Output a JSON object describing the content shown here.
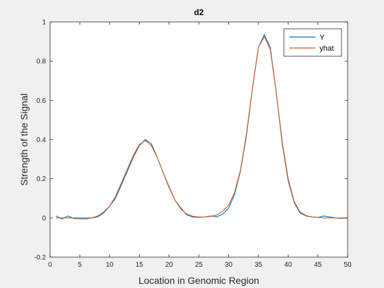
{
  "chart_data": {
    "type": "line",
    "title": "d2",
    "xlabel": "Location in Genomic Region",
    "ylabel": "Strength of the Signal",
    "xlim": [
      0,
      50
    ],
    "ylim": [
      -0.2,
      1
    ],
    "xticks": [
      0,
      5,
      10,
      15,
      20,
      25,
      30,
      35,
      40,
      45,
      50
    ],
    "yticks": [
      -0.2,
      0,
      0.2,
      0.4,
      0.6,
      0.8,
      1
    ],
    "grid": false,
    "legend_position": "top-right",
    "x": [
      1,
      2,
      3,
      4,
      5,
      6,
      7,
      8,
      9,
      10,
      11,
      12,
      13,
      14,
      15,
      16,
      17,
      18,
      19,
      20,
      21,
      22,
      23,
      24,
      25,
      26,
      27,
      28,
      29,
      30,
      31,
      32,
      33,
      34,
      35,
      36,
      37,
      38,
      39,
      40,
      41,
      42,
      43,
      44,
      45,
      46,
      47,
      48,
      49,
      50
    ],
    "series": [
      {
        "name": "Y",
        "color": "#0072bd",
        "values": [
          0.01,
          -0.005,
          0.01,
          -0.003,
          -0.004,
          -0.005,
          0.0,
          0.005,
          0.025,
          0.06,
          0.1,
          0.17,
          0.24,
          0.31,
          0.37,
          0.4,
          0.38,
          0.31,
          0.23,
          0.16,
          0.09,
          0.05,
          0.015,
          0.005,
          0.003,
          0.005,
          0.01,
          0.005,
          0.02,
          0.05,
          0.12,
          0.24,
          0.42,
          0.66,
          0.87,
          0.935,
          0.87,
          0.64,
          0.38,
          0.19,
          0.08,
          0.025,
          0.01,
          0.005,
          0.003,
          0.01,
          0.005,
          0.0,
          -0.002,
          0.0
        ]
      },
      {
        "name": "yhat",
        "color": "#d95319",
        "values": [
          0.0,
          0.0,
          0.0,
          0.0,
          0.0,
          0.0,
          0.0,
          0.01,
          0.03,
          0.06,
          0.11,
          0.18,
          0.25,
          0.32,
          0.375,
          0.395,
          0.37,
          0.31,
          0.23,
          0.155,
          0.09,
          0.045,
          0.02,
          0.008,
          0.005,
          0.005,
          0.008,
          0.015,
          0.035,
          0.065,
          0.13,
          0.245,
          0.43,
          0.66,
          0.87,
          0.925,
          0.86,
          0.64,
          0.39,
          0.2,
          0.085,
          0.03,
          0.012,
          0.005,
          0.003,
          0.0,
          0.0,
          0.0,
          0.0,
          0.0
        ]
      }
    ]
  }
}
